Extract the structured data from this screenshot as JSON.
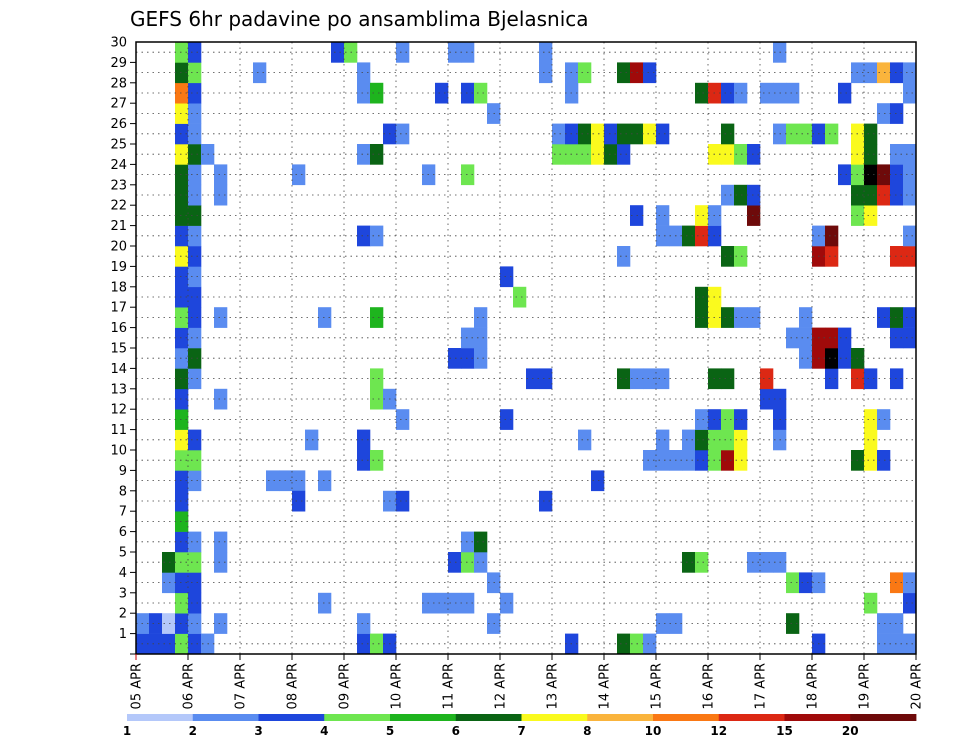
{
  "chart_data": {
    "type": "heatmap",
    "title": "GEFS 6hr padavine po ansamblima Bjelasnica",
    "xlabel": "",
    "ylabel": "",
    "x_ticks": [
      "05 APR",
      "06 APR",
      "07 APR",
      "08 APR",
      "09 APR",
      "10 APR",
      "11 APR",
      "12 APR",
      "13 APR",
      "14 APR",
      "15 APR",
      "16 APR",
      "17 APR",
      "18 APR",
      "19 APR",
      "20 APR"
    ],
    "y_ticks": [
      "1",
      "2",
      "3",
      "4",
      "5",
      "6",
      "7",
      "8",
      "9",
      "10",
      "11",
      "12",
      "13",
      "14",
      "15",
      "16",
      "17",
      "18",
      "19",
      "20",
      "21",
      "22",
      "23",
      "24",
      "25",
      "26",
      "27",
      "28",
      "29",
      "30"
    ],
    "y_range": [
      1,
      30
    ],
    "grid": true,
    "colorbar": {
      "labels": [
        "1",
        "2",
        "3",
        "4",
        "5",
        "6",
        "7",
        "8",
        "10",
        "12",
        "15",
        "20"
      ],
      "colors": [
        "#b4c8fa",
        "#5a8cf0",
        "#1e46dc",
        "#6ee650",
        "#1eb41e",
        "#0a6414",
        "#fafa1e",
        "#fab43c",
        "#fa7814",
        "#dc2814",
        "#a00a0a",
        "#6e0a0a"
      ]
    },
    "cells": [
      [
        4,
        1,
        2
      ],
      [
        4,
        2,
        1
      ],
      [
        5,
        1,
        2
      ],
      [
        5,
        2,
        2
      ],
      [
        6,
        1,
        2
      ],
      [
        6,
        2,
        0
      ],
      [
        6,
        4,
        1
      ],
      [
        6,
        5,
        5
      ],
      [
        7,
        1,
        3
      ],
      [
        7,
        2,
        2
      ],
      [
        7,
        3,
        3
      ],
      [
        7,
        4,
        2
      ],
      [
        7,
        5,
        3
      ],
      [
        7,
        6,
        2
      ],
      [
        7,
        7,
        4
      ],
      [
        7,
        8,
        2
      ],
      [
        7,
        9,
        2
      ],
      [
        7,
        10,
        3
      ],
      [
        7,
        11,
        6
      ],
      [
        7,
        12,
        4
      ],
      [
        7,
        13,
        2
      ],
      [
        7,
        14,
        5
      ],
      [
        7,
        15,
        1
      ],
      [
        7,
        16,
        2
      ],
      [
        7,
        17,
        3
      ],
      [
        7,
        18,
        2
      ],
      [
        7,
        19,
        2
      ],
      [
        7,
        20,
        6
      ],
      [
        7,
        21,
        2
      ],
      [
        7,
        22,
        5
      ],
      [
        7,
        23,
        5
      ],
      [
        7,
        24,
        5
      ],
      [
        7,
        25,
        6
      ],
      [
        7,
        26,
        2
      ],
      [
        7,
        27,
        6
      ],
      [
        7,
        28,
        8
      ],
      [
        7,
        29,
        5
      ],
      [
        7,
        30,
        3
      ],
      [
        8,
        1,
        2
      ],
      [
        8,
        2,
        1
      ],
      [
        8,
        3,
        2
      ],
      [
        8,
        4,
        2
      ],
      [
        8,
        5,
        3
      ],
      [
        8,
        6,
        1
      ],
      [
        8,
        9,
        1
      ],
      [
        8,
        10,
        3
      ],
      [
        8,
        11,
        2
      ],
      [
        8,
        14,
        1
      ],
      [
        8,
        15,
        5
      ],
      [
        8,
        16,
        1
      ],
      [
        8,
        17,
        2
      ],
      [
        8,
        18,
        2
      ],
      [
        8,
        19,
        1
      ],
      [
        8,
        20,
        2
      ],
      [
        8,
        21,
        1
      ],
      [
        8,
        22,
        5
      ],
      [
        8,
        23,
        1
      ],
      [
        8,
        24,
        1
      ],
      [
        8,
        25,
        5
      ],
      [
        8,
        26,
        1
      ],
      [
        8,
        27,
        1
      ],
      [
        8,
        28,
        2
      ],
      [
        8,
        29,
        3
      ],
      [
        8,
        30,
        2
      ],
      [
        9,
        1,
        1
      ],
      [
        9,
        25,
        1
      ],
      [
        10,
        2,
        1
      ],
      [
        10,
        5,
        1
      ],
      [
        10,
        6,
        1
      ],
      [
        10,
        13,
        1
      ],
      [
        10,
        17,
        1
      ],
      [
        10,
        23,
        1
      ],
      [
        10,
        24,
        1
      ],
      [
        13,
        29,
        1
      ],
      [
        14,
        9,
        1
      ],
      [
        15,
        9,
        1
      ],
      [
        16,
        9,
        1
      ],
      [
        16,
        8,
        2
      ],
      [
        16,
        24,
        1
      ],
      [
        17,
        11,
        1
      ],
      [
        18,
        3,
        1
      ],
      [
        18,
        9,
        1
      ],
      [
        18,
        17,
        1
      ],
      [
        19,
        30,
        2
      ],
      [
        20,
        30,
        3
      ],
      [
        21,
        1,
        2
      ],
      [
        21,
        2,
        1
      ],
      [
        21,
        10,
        2
      ],
      [
        21,
        11,
        2
      ],
      [
        21,
        21,
        2
      ],
      [
        21,
        25,
        1
      ],
      [
        21,
        28,
        1
      ],
      [
        21,
        29,
        1
      ],
      [
        22,
        1,
        3
      ],
      [
        22,
        10,
        3
      ],
      [
        22,
        13,
        3
      ],
      [
        22,
        14,
        3
      ],
      [
        22,
        17,
        4
      ],
      [
        22,
        21,
        1
      ],
      [
        22,
        25,
        5
      ],
      [
        22,
        28,
        4
      ],
      [
        23,
        1,
        2
      ],
      [
        23,
        8,
        1
      ],
      [
        23,
        13,
        1
      ],
      [
        23,
        26,
        2
      ],
      [
        24,
        8,
        2
      ],
      [
        24,
        12,
        1
      ],
      [
        24,
        26,
        1
      ],
      [
        24,
        30,
        1
      ],
      [
        26,
        3,
        1
      ],
      [
        26,
        24,
        1
      ],
      [
        27,
        3,
        1
      ],
      [
        27,
        28,
        2
      ],
      [
        28,
        3,
        1
      ],
      [
        28,
        5,
        2
      ],
      [
        28,
        15,
        2
      ],
      [
        28,
        30,
        1
      ],
      [
        29,
        3,
        1
      ],
      [
        29,
        5,
        3
      ],
      [
        29,
        6,
        1
      ],
      [
        29,
        15,
        2
      ],
      [
        29,
        16,
        1
      ],
      [
        29,
        24,
        3
      ],
      [
        29,
        28,
        2
      ],
      [
        29,
        30,
        1
      ],
      [
        30,
        5,
        1
      ],
      [
        30,
        6,
        5
      ],
      [
        30,
        15,
        1
      ],
      [
        30,
        16,
        1
      ],
      [
        30,
        17,
        1
      ],
      [
        30,
        28,
        3
      ],
      [
        31,
        2,
        1
      ],
      [
        31,
        4,
        1
      ],
      [
        31,
        27,
        1
      ],
      [
        32,
        3,
        1
      ],
      [
        32,
        12,
        2
      ],
      [
        32,
        19,
        2
      ],
      [
        33,
        18,
        3
      ],
      [
        34,
        14,
        2
      ],
      [
        35,
        14,
        2
      ],
      [
        35,
        8,
        2
      ],
      [
        35,
        29,
        1
      ],
      [
        35,
        30,
        1
      ],
      [
        36,
        25,
        3
      ],
      [
        36,
        26,
        1
      ],
      [
        37,
        1,
        2
      ],
      [
        37,
        25,
        3
      ],
      [
        37,
        26,
        2
      ],
      [
        37,
        28,
        1
      ],
      [
        37,
        29,
        1
      ],
      [
        38,
        25,
        3
      ],
      [
        38,
        26,
        5
      ],
      [
        38,
        29,
        3
      ],
      [
        38,
        11,
        1
      ],
      [
        39,
        25,
        6
      ],
      [
        39,
        26,
        6
      ],
      [
        39,
        9,
        2
      ],
      [
        40,
        25,
        5
      ],
      [
        40,
        26,
        2
      ],
      [
        41,
        25,
        2
      ],
      [
        41,
        20,
        1
      ],
      [
        41,
        1,
        5
      ],
      [
        41,
        14,
        5
      ],
      [
        41,
        26,
        5
      ],
      [
        41,
        29,
        5
      ],
      [
        42,
        1,
        3
      ],
      [
        42,
        26,
        5
      ],
      [
        42,
        29,
        10
      ],
      [
        42,
        14,
        1
      ],
      [
        42,
        22,
        2
      ],
      [
        43,
        1,
        1
      ],
      [
        43,
        26,
        6
      ],
      [
        43,
        29,
        2
      ],
      [
        43,
        14,
        1
      ],
      [
        43,
        10,
        1
      ],
      [
        44,
        10,
        1
      ],
      [
        44,
        11,
        1
      ],
      [
        44,
        26,
        2
      ],
      [
        44,
        2,
        1
      ],
      [
        44,
        14,
        1
      ],
      [
        44,
        22,
        1
      ],
      [
        44,
        21,
        1
      ],
      [
        45,
        10,
        1
      ],
      [
        45,
        2,
        1
      ],
      [
        45,
        21,
        1
      ],
      [
        46,
        5,
        5
      ],
      [
        46,
        10,
        1
      ],
      [
        46,
        11,
        1
      ],
      [
        46,
        21,
        5
      ],
      [
        47,
        5,
        3
      ],
      [
        47,
        10,
        2
      ],
      [
        47,
        11,
        5
      ],
      [
        47,
        12,
        1
      ],
      [
        47,
        17,
        5
      ],
      [
        47,
        18,
        5
      ],
      [
        47,
        21,
        9
      ],
      [
        47,
        22,
        6
      ],
      [
        47,
        28,
        5
      ],
      [
        48,
        10,
        3
      ],
      [
        48,
        11,
        3
      ],
      [
        48,
        12,
        2
      ],
      [
        48,
        14,
        5
      ],
      [
        48,
        17,
        6
      ],
      [
        48,
        18,
        6
      ],
      [
        48,
        21,
        2
      ],
      [
        48,
        22,
        1
      ],
      [
        48,
        25,
        6
      ],
      [
        48,
        28,
        9
      ],
      [
        49,
        10,
        10
      ],
      [
        49,
        11,
        3
      ],
      [
        49,
        12,
        3
      ],
      [
        49,
        14,
        5
      ],
      [
        49,
        17,
        5
      ],
      [
        49,
        20,
        5
      ],
      [
        49,
        23,
        1
      ],
      [
        49,
        25,
        6
      ],
      [
        49,
        26,
        5
      ],
      [
        49,
        28,
        2
      ],
      [
        50,
        10,
        6
      ],
      [
        50,
        11,
        6
      ],
      [
        50,
        12,
        2
      ],
      [
        50,
        17,
        1
      ],
      [
        50,
        20,
        3
      ],
      [
        50,
        23,
        5
      ],
      [
        50,
        25,
        3
      ],
      [
        50,
        28,
        1
      ],
      [
        51,
        5,
        1
      ],
      [
        51,
        17,
        1
      ],
      [
        51,
        22,
        11
      ],
      [
        51,
        23,
        2
      ],
      [
        51,
        25,
        2
      ],
      [
        52,
        5,
        1
      ],
      [
        52,
        13,
        2
      ],
      [
        52,
        14,
        9
      ],
      [
        52,
        28,
        1
      ],
      [
        53,
        5,
        1
      ],
      [
        53,
        11,
        1
      ],
      [
        53,
        12,
        2
      ],
      [
        53,
        13,
        2
      ],
      [
        53,
        26,
        1
      ],
      [
        53,
        28,
        1
      ],
      [
        53,
        30,
        1
      ],
      [
        54,
        2,
        5
      ],
      [
        54,
        4,
        3
      ],
      [
        54,
        16,
        1
      ],
      [
        54,
        26,
        3
      ],
      [
        54,
        28,
        1
      ],
      [
        55,
        4,
        2
      ],
      [
        55,
        15,
        1
      ],
      [
        55,
        16,
        1
      ],
      [
        55,
        17,
        1
      ],
      [
        55,
        26,
        3
      ],
      [
        56,
        1,
        2
      ],
      [
        56,
        4,
        1
      ],
      [
        56,
        15,
        10
      ],
      [
        56,
        16,
        10
      ],
      [
        56,
        20,
        10
      ],
      [
        56,
        21,
        1
      ],
      [
        56,
        26,
        2
      ],
      [
        57,
        14,
        2
      ],
      [
        57,
        15,
        12
      ],
      [
        57,
        16,
        10
      ],
      [
        57,
        20,
        9
      ],
      [
        57,
        21,
        11
      ],
      [
        57,
        26,
        3
      ],
      [
        58,
        15,
        2
      ],
      [
        58,
        16,
        2
      ],
      [
        58,
        24,
        2
      ],
      [
        58,
        28,
        2
      ],
      [
        59,
        10,
        5
      ],
      [
        59,
        14,
        9
      ],
      [
        59,
        15,
        5
      ],
      [
        59,
        22,
        3
      ],
      [
        59,
        23,
        5
      ],
      [
        59,
        24,
        3
      ],
      [
        59,
        25,
        6
      ],
      [
        59,
        26,
        6
      ],
      [
        59,
        29,
        1
      ],
      [
        60,
        3,
        3
      ],
      [
        60,
        10,
        6
      ],
      [
        60,
        11,
        6
      ],
      [
        60,
        12,
        6
      ],
      [
        60,
        14,
        2
      ],
      [
        60,
        22,
        6
      ],
      [
        60,
        23,
        5
      ],
      [
        60,
        24,
        12
      ],
      [
        60,
        25,
        5
      ],
      [
        60,
        26,
        5
      ],
      [
        60,
        29,
        1
      ],
      [
        61,
        1,
        1
      ],
      [
        61,
        2,
        1
      ],
      [
        61,
        10,
        2
      ],
      [
        61,
        12,
        1
      ],
      [
        61,
        17,
        2
      ],
      [
        61,
        23,
        9
      ],
      [
        61,
        24,
        11
      ],
      [
        61,
        27,
        1
      ],
      [
        61,
        29,
        7
      ],
      [
        62,
        1,
        1
      ],
      [
        62,
        2,
        1
      ],
      [
        62,
        4,
        8
      ],
      [
        62,
        14,
        2
      ],
      [
        62,
        16,
        2
      ],
      [
        62,
        17,
        5
      ],
      [
        62,
        20,
        9
      ],
      [
        62,
        23,
        2
      ],
      [
        62,
        24,
        2
      ],
      [
        62,
        25,
        1
      ],
      [
        62,
        27,
        2
      ],
      [
        62,
        29,
        2
      ],
      [
        63,
        1,
        1
      ],
      [
        63,
        3,
        2
      ],
      [
        63,
        4,
        1
      ],
      [
        63,
        16,
        2
      ],
      [
        63,
        17,
        2
      ],
      [
        63,
        20,
        9
      ],
      [
        63,
        21,
        1
      ],
      [
        63,
        23,
        1
      ],
      [
        63,
        24,
        1
      ],
      [
        63,
        25,
        1
      ],
      [
        63,
        28,
        1
      ],
      [
        63,
        29,
        1
      ],
      [
        64,
        1,
        2
      ],
      [
        64,
        15,
        2
      ],
      [
        64,
        16,
        2
      ],
      [
        64,
        23,
        2
      ]
    ]
  }
}
